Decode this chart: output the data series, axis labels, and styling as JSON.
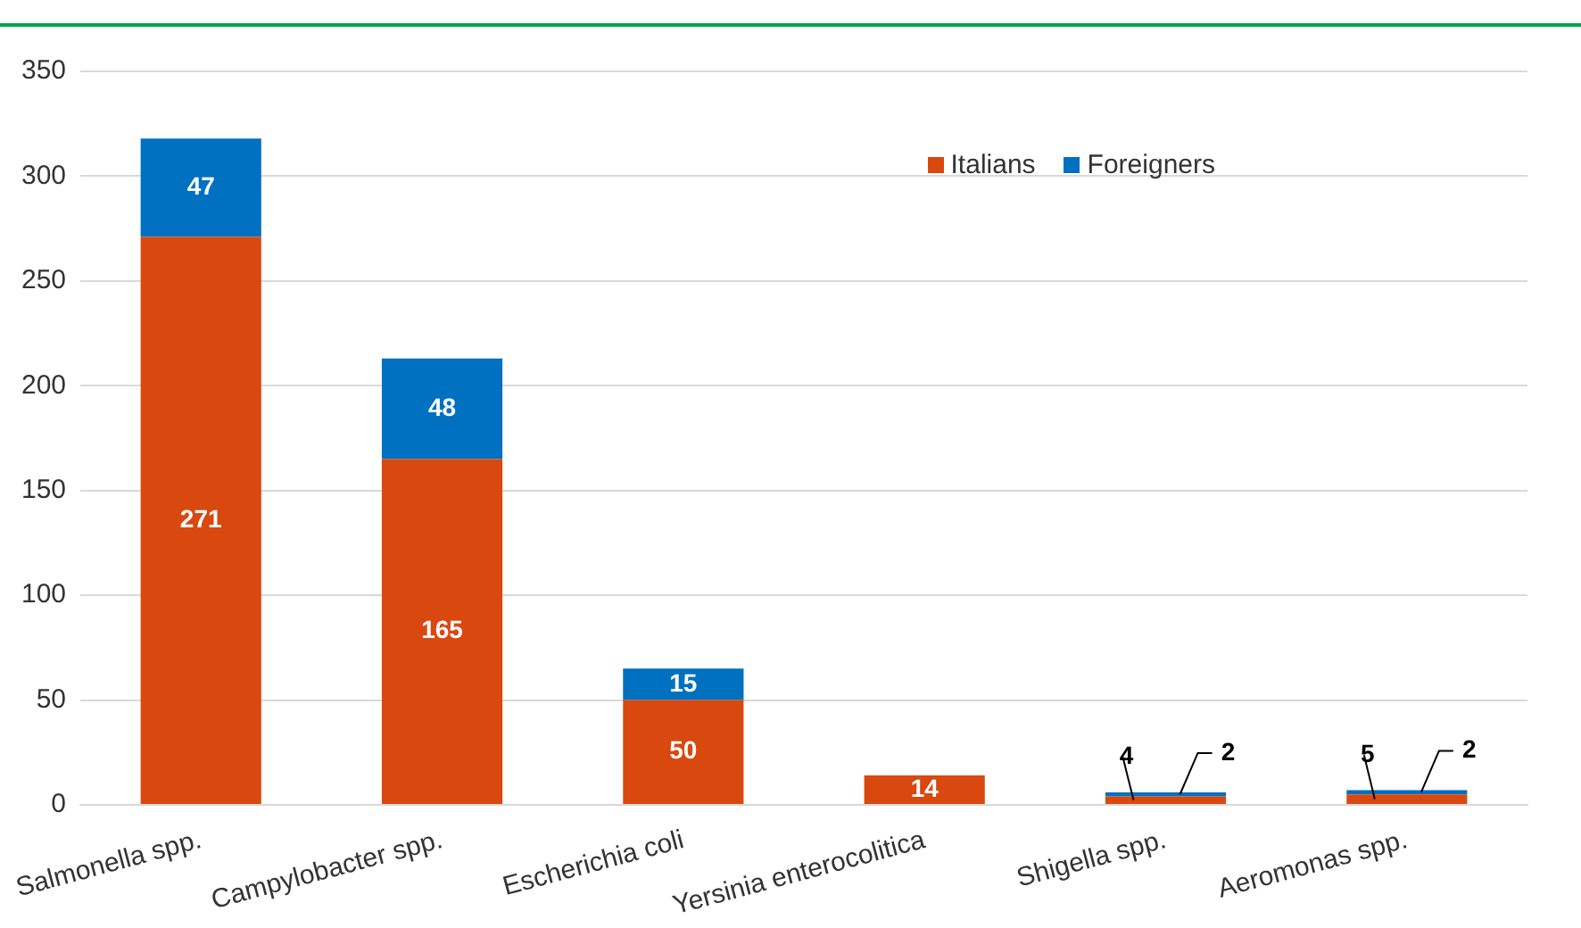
{
  "chart_data": {
    "type": "bar",
    "stacked": true,
    "categories": [
      "Salmonella spp.",
      "Campylobacter spp.",
      "Escherichia coli",
      "Yersinia enterocolitica",
      "Shigella spp.",
      "Aeromonas spp."
    ],
    "series": [
      {
        "name": "Italians",
        "color": "#d9480f",
        "values": [
          271,
          165,
          50,
          14,
          4,
          5
        ]
      },
      {
        "name": "Foreigners",
        "color": "#0070c0",
        "values": [
          47,
          48,
          15,
          null,
          2,
          2
        ]
      }
    ],
    "ylim": [
      0,
      350
    ],
    "yticks": [
      0,
      50,
      100,
      150,
      200,
      250,
      300,
      350
    ],
    "grid": "y",
    "legend": "top right",
    "data_labels": true
  }
}
